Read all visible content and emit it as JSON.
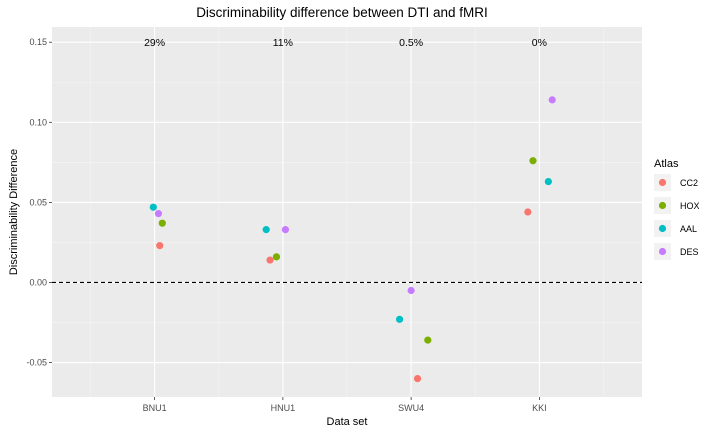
{
  "chart_data": {
    "type": "scatter",
    "title": "Discriminability difference between DTI and fMRI",
    "xlabel": "Data set",
    "ylabel": "Discriminability Difference",
    "categories": [
      "BNU1",
      "HNU1",
      "SWU4",
      "KKI"
    ],
    "ylim": [
      -0.0715,
      0.1595
    ],
    "yticks": [
      -0.05,
      0.0,
      0.05,
      0.1,
      0.15
    ],
    "ytick_labels": [
      "-0.05",
      "0.00",
      "0.05",
      "0.10",
      "0.15"
    ],
    "reference_line": 0,
    "grid": true,
    "legend": {
      "title": "Atlas",
      "position": "right"
    },
    "annotations": [
      {
        "category": "BNU1",
        "text": "29%",
        "y": 0.1501
      },
      {
        "category": "HNU1",
        "text": "11%",
        "y": 0.1501
      },
      {
        "category": "SWU4",
        "text": "0.5%",
        "y": 0.1501
      },
      {
        "category": "KKI",
        "text": "0%",
        "y": 0.1501
      }
    ],
    "series": [
      {
        "name": "CC2",
        "color": "#F8766D",
        "points": [
          {
            "category": "BNU1",
            "y": 0.023,
            "jitter": 0.04
          },
          {
            "category": "HNU1",
            "y": 0.014,
            "jitter": -0.1
          },
          {
            "category": "SWU4",
            "y": -0.06,
            "jitter": 0.05
          },
          {
            "category": "KKI",
            "y": 0.044,
            "jitter": -0.09
          }
        ]
      },
      {
        "name": "HOX",
        "color": "#7CAE00",
        "points": [
          {
            "category": "BNU1",
            "y": 0.037,
            "jitter": 0.06
          },
          {
            "category": "HNU1",
            "y": 0.016,
            "jitter": -0.05
          },
          {
            "category": "SWU4",
            "y": -0.036,
            "jitter": 0.13
          },
          {
            "category": "KKI",
            "y": 0.076,
            "jitter": -0.05
          }
        ]
      },
      {
        "name": "AAL",
        "color": "#00BFC4",
        "points": [
          {
            "category": "BNU1",
            "y": 0.047,
            "jitter": -0.01
          },
          {
            "category": "HNU1",
            "y": 0.033,
            "jitter": -0.13
          },
          {
            "category": "SWU4",
            "y": -0.023,
            "jitter": -0.09
          },
          {
            "category": "KKI",
            "y": 0.063,
            "jitter": 0.07
          }
        ]
      },
      {
        "name": "DES",
        "color": "#C77CFF",
        "points": [
          {
            "category": "BNU1",
            "y": 0.043,
            "jitter": 0.03
          },
          {
            "category": "HNU1",
            "y": 0.033,
            "jitter": 0.02
          },
          {
            "category": "SWU4",
            "y": -0.005,
            "jitter": 0.0
          },
          {
            "category": "KKI",
            "y": 0.114,
            "jitter": 0.1
          }
        ]
      }
    ]
  }
}
